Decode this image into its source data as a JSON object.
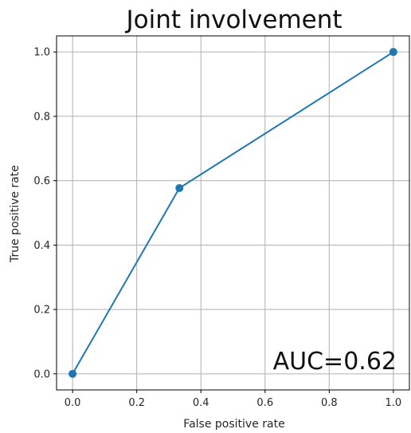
{
  "chart_data": {
    "type": "line",
    "title": "Joint involvement",
    "xlabel": "False positive rate",
    "ylabel": "True positive rate",
    "xlim": [
      -0.05,
      1.05
    ],
    "ylim": [
      -0.05,
      1.05
    ],
    "xticks": [
      "0.0",
      "0.2",
      "0.4",
      "0.6",
      "0.8",
      "1.0"
    ],
    "yticks": [
      "0.0",
      "0.2",
      "0.4",
      "0.6",
      "0.8",
      "1.0"
    ],
    "grid": true,
    "series": [
      {
        "x": [
          0.0,
          0.333,
          1.0
        ],
        "y": [
          0.0,
          0.577,
          1.0
        ],
        "color": "#1f77b4",
        "marker": "circle"
      }
    ],
    "annotation": "AUC=0.62"
  }
}
